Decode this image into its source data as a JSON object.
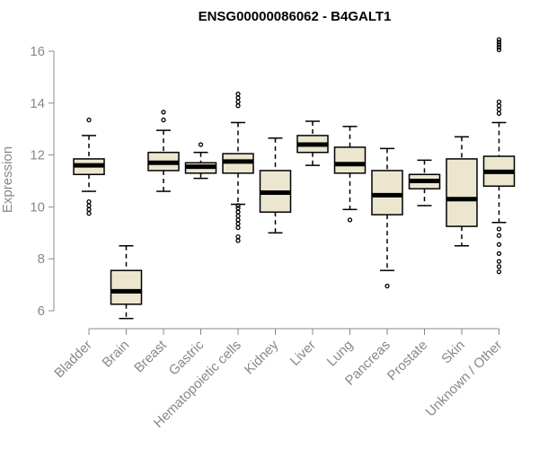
{
  "chart_data": {
    "type": "boxplot",
    "title": "ENSG00000086062 - B4GALT1",
    "xlabel": "",
    "ylabel": "Expression",
    "ylim": [
      5.6,
      16.6
    ],
    "yticks": [
      6,
      8,
      10,
      12,
      14,
      16
    ],
    "categories": [
      "Bladder",
      "Brain",
      "Breast",
      "Gastric",
      "Hematopoietic cells",
      "Kidney",
      "Liver",
      "Lung",
      "Pancreas",
      "Prostate",
      "Skin",
      "Unknown / Other"
    ],
    "boxes": [
      {
        "category": "Bladder",
        "whisker_low": 10.6,
        "q1": 11.25,
        "median": 11.6,
        "q3": 11.85,
        "whisker_high": 12.75,
        "outliers": [
          9.75,
          9.9,
          10.05,
          10.2,
          13.35
        ]
      },
      {
        "category": "Brain",
        "whisker_low": 5.7,
        "q1": 6.25,
        "median": 6.75,
        "q3": 7.55,
        "whisker_high": 8.5,
        "outliers": []
      },
      {
        "category": "Breast",
        "whisker_low": 10.6,
        "q1": 11.4,
        "median": 11.7,
        "q3": 12.1,
        "whisker_high": 12.95,
        "outliers": [
          13.35,
          13.65
        ]
      },
      {
        "category": "Gastric",
        "whisker_low": 11.1,
        "q1": 11.3,
        "median": 11.55,
        "q3": 11.7,
        "whisker_high": 12.1,
        "outliers": [
          12.4
        ]
      },
      {
        "category": "Hematopoietic cells",
        "whisker_low": 10.1,
        "q1": 11.3,
        "median": 11.75,
        "q3": 12.05,
        "whisker_high": 13.25,
        "outliers": [
          8.7,
          8.85,
          9.2,
          9.35,
          9.5,
          9.65,
          9.8,
          9.95,
          10.05,
          13.9,
          14.05,
          14.2,
          14.35
        ]
      },
      {
        "category": "Kidney",
        "whisker_low": 9.0,
        "q1": 9.8,
        "median": 10.55,
        "q3": 11.4,
        "whisker_high": 12.65,
        "outliers": []
      },
      {
        "category": "Liver",
        "whisker_low": 11.6,
        "q1": 12.1,
        "median": 12.4,
        "q3": 12.75,
        "whisker_high": 13.3,
        "outliers": []
      },
      {
        "category": "Lung",
        "whisker_low": 9.9,
        "q1": 11.3,
        "median": 11.65,
        "q3": 12.3,
        "whisker_high": 13.1,
        "outliers": [
          9.5
        ]
      },
      {
        "category": "Pancreas",
        "whisker_low": 7.55,
        "q1": 9.7,
        "median": 10.45,
        "q3": 11.4,
        "whisker_high": 12.25,
        "outliers": [
          6.95
        ]
      },
      {
        "category": "Prostate",
        "whisker_low": 10.05,
        "q1": 10.7,
        "median": 11.0,
        "q3": 11.25,
        "whisker_high": 11.8,
        "outliers": []
      },
      {
        "category": "Skin",
        "whisker_low": 8.5,
        "q1": 9.25,
        "median": 10.3,
        "q3": 11.85,
        "whisker_high": 12.7,
        "outliers": []
      },
      {
        "category": "Unknown / Other",
        "whisker_low": 9.4,
        "q1": 10.8,
        "median": 11.35,
        "q3": 11.95,
        "whisker_high": 13.25,
        "outliers": [
          7.5,
          7.7,
          7.9,
          8.2,
          8.55,
          8.9,
          9.15,
          13.6,
          13.75,
          13.9,
          14.05,
          16.05,
          16.15,
          16.25,
          16.35,
          16.45
        ]
      }
    ],
    "colors": {
      "box_fill": "#ece6cf",
      "box_stroke": "#000000",
      "axis": "#888888",
      "median": "#000000"
    }
  }
}
